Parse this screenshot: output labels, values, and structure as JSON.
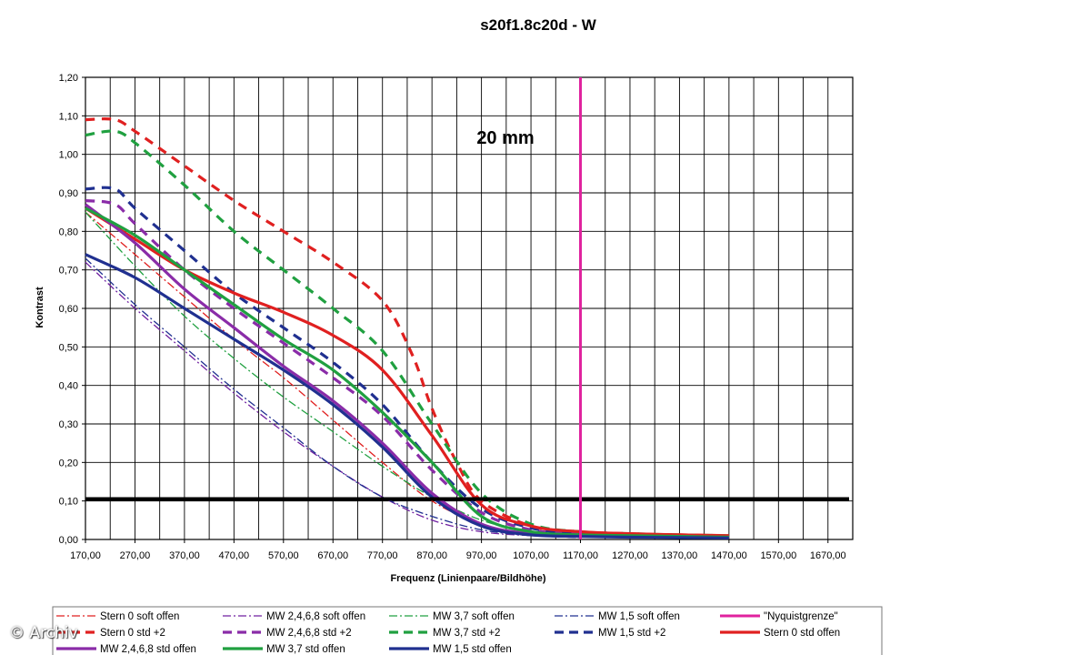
{
  "chart_data": {
    "type": "line",
    "title": "s20f1.8c20d - W",
    "annotation": "20 mm",
    "xlabel": "Frequenz (Linienpaare/Bildhöhe)",
    "ylabel": "Kontrast",
    "xlim": [
      170,
      1720
    ],
    "ylim": [
      0,
      1.2
    ],
    "x_ticks": [
      "170,00",
      "270,00",
      "370,00",
      "470,00",
      "570,00",
      "670,00",
      "770,00",
      "870,00",
      "970,00",
      "1070,00",
      "1170,00",
      "1270,00",
      "1370,00",
      "1470,00",
      "1570,00",
      "1670,00"
    ],
    "y_ticks": [
      "0,00",
      "0,10",
      "0,20",
      "0,30",
      "0,40",
      "0,50",
      "0,60",
      "0,70",
      "0,80",
      "0,90",
      "1,00",
      "1,10",
      "1,20"
    ],
    "grid": true,
    "reference_line": {
      "y": 0.105
    },
    "nyquist": {
      "name": "\"Nyquistgrenze\"",
      "x": 1170,
      "color": "#e0229e"
    },
    "series": [
      {
        "name": "Stern 0 soft offen",
        "color": "#e02020",
        "style": "dashdot",
        "width": 1.3,
        "points": [
          [
            170,
            0.85
          ],
          [
            270,
            0.74
          ],
          [
            370,
            0.63
          ],
          [
            470,
            0.52
          ],
          [
            570,
            0.42
          ],
          [
            670,
            0.31
          ],
          [
            770,
            0.2
          ],
          [
            870,
            0.1
          ],
          [
            970,
            0.04
          ],
          [
            1070,
            0.015
          ],
          [
            1170,
            0.01
          ]
        ]
      },
      {
        "name": "MW 2,4,6,8 soft offen",
        "color": "#7020a0",
        "style": "dashdot",
        "width": 1.3,
        "points": [
          [
            170,
            0.72
          ],
          [
            270,
            0.6
          ],
          [
            370,
            0.49
          ],
          [
            470,
            0.38
          ],
          [
            570,
            0.28
          ],
          [
            670,
            0.19
          ],
          [
            770,
            0.11
          ],
          [
            870,
            0.05
          ],
          [
            970,
            0.02
          ],
          [
            1070,
            0.01
          ],
          [
            1170,
            0.005
          ]
        ]
      },
      {
        "name": "MW 3,7 soft offen",
        "color": "#20a040",
        "style": "dashdot",
        "width": 1.3,
        "points": [
          [
            170,
            0.85
          ],
          [
            270,
            0.71
          ],
          [
            370,
            0.58
          ],
          [
            470,
            0.47
          ],
          [
            570,
            0.37
          ],
          [
            670,
            0.28
          ],
          [
            770,
            0.19
          ],
          [
            870,
            0.11
          ],
          [
            970,
            0.05
          ],
          [
            1070,
            0.02
          ],
          [
            1170,
            0.01
          ]
        ]
      },
      {
        "name": "MW 1,5 soft offen",
        "color": "#203090",
        "style": "dashdot",
        "width": 1.3,
        "points": [
          [
            170,
            0.73
          ],
          [
            270,
            0.61
          ],
          [
            370,
            0.5
          ],
          [
            470,
            0.39
          ],
          [
            570,
            0.29
          ],
          [
            670,
            0.19
          ],
          [
            770,
            0.11
          ],
          [
            870,
            0.06
          ],
          [
            970,
            0.025
          ],
          [
            1070,
            0.01
          ],
          [
            1170,
            0.005
          ]
        ]
      },
      {
        "name": "Stern 0 std +2",
        "color": "#e02020",
        "style": "dash",
        "width": 3.2,
        "points": [
          [
            170,
            1.09
          ],
          [
            230,
            1.09
          ],
          [
            270,
            1.06
          ],
          [
            370,
            0.97
          ],
          [
            470,
            0.88
          ],
          [
            570,
            0.8
          ],
          [
            670,
            0.72
          ],
          [
            770,
            0.62
          ],
          [
            830,
            0.48
          ],
          [
            870,
            0.34
          ],
          [
            920,
            0.2
          ],
          [
            970,
            0.1
          ],
          [
            1070,
            0.035
          ],
          [
            1170,
            0.02
          ],
          [
            1270,
            0.015
          ],
          [
            1370,
            0.012
          ],
          [
            1470,
            0.01
          ]
        ]
      },
      {
        "name": "MW 2,4,6,8 std +2",
        "color": "#8a2ca8",
        "style": "dash",
        "width": 3.2,
        "points": [
          [
            170,
            0.88
          ],
          [
            230,
            0.87
          ],
          [
            270,
            0.82
          ],
          [
            370,
            0.7
          ],
          [
            470,
            0.6
          ],
          [
            570,
            0.51
          ],
          [
            670,
            0.42
          ],
          [
            770,
            0.32
          ],
          [
            870,
            0.18
          ],
          [
            970,
            0.07
          ],
          [
            1070,
            0.025
          ],
          [
            1170,
            0.015
          ],
          [
            1270,
            0.012
          ],
          [
            1370,
            0.01
          ],
          [
            1470,
            0.008
          ]
        ]
      },
      {
        "name": "MW 3,7 std +2",
        "color": "#20a040",
        "style": "dash",
        "width": 3.2,
        "points": [
          [
            170,
            1.05
          ],
          [
            230,
            1.06
          ],
          [
            270,
            1.03
          ],
          [
            370,
            0.92
          ],
          [
            470,
            0.8
          ],
          [
            570,
            0.7
          ],
          [
            670,
            0.6
          ],
          [
            770,
            0.49
          ],
          [
            870,
            0.3
          ],
          [
            970,
            0.12
          ],
          [
            1070,
            0.04
          ],
          [
            1170,
            0.02
          ],
          [
            1270,
            0.015
          ],
          [
            1370,
            0.012
          ],
          [
            1470,
            0.01
          ]
        ]
      },
      {
        "name": "MW 1,5 std +2",
        "color": "#203090",
        "style": "dash",
        "width": 3.2,
        "points": [
          [
            170,
            0.91
          ],
          [
            230,
            0.91
          ],
          [
            270,
            0.86
          ],
          [
            370,
            0.75
          ],
          [
            470,
            0.64
          ],
          [
            570,
            0.55
          ],
          [
            670,
            0.46
          ],
          [
            770,
            0.35
          ],
          [
            870,
            0.2
          ],
          [
            970,
            0.08
          ],
          [
            1070,
            0.03
          ],
          [
            1170,
            0.015
          ],
          [
            1270,
            0.012
          ],
          [
            1370,
            0.01
          ],
          [
            1470,
            0.008
          ]
        ]
      },
      {
        "name": "Stern 0 std offen",
        "color": "#e02020",
        "style": "solid",
        "width": 3.2,
        "points": [
          [
            170,
            0.86
          ],
          [
            270,
            0.78
          ],
          [
            370,
            0.7
          ],
          [
            470,
            0.64
          ],
          [
            570,
            0.59
          ],
          [
            670,
            0.53
          ],
          [
            770,
            0.44
          ],
          [
            870,
            0.27
          ],
          [
            970,
            0.09
          ],
          [
            1070,
            0.035
          ],
          [
            1170,
            0.02
          ],
          [
            1270,
            0.015
          ],
          [
            1370,
            0.012
          ],
          [
            1470,
            0.01
          ]
        ]
      },
      {
        "name": "MW 2,4,6,8 std offen",
        "color": "#8a2ca8",
        "style": "solid",
        "width": 3.2,
        "points": [
          [
            170,
            0.87
          ],
          [
            270,
            0.77
          ],
          [
            370,
            0.65
          ],
          [
            470,
            0.55
          ],
          [
            570,
            0.45
          ],
          [
            670,
            0.36
          ],
          [
            770,
            0.25
          ],
          [
            870,
            0.12
          ],
          [
            970,
            0.04
          ],
          [
            1070,
            0.015
          ],
          [
            1170,
            0.01
          ],
          [
            1270,
            0.008
          ],
          [
            1370,
            0.006
          ],
          [
            1470,
            0.005
          ]
        ]
      },
      {
        "name": "MW 3,7 std offen",
        "color": "#20a040",
        "style": "solid",
        "width": 3.2,
        "points": [
          [
            170,
            0.86
          ],
          [
            270,
            0.79
          ],
          [
            370,
            0.7
          ],
          [
            470,
            0.61
          ],
          [
            570,
            0.52
          ],
          [
            670,
            0.44
          ],
          [
            770,
            0.33
          ],
          [
            870,
            0.2
          ],
          [
            970,
            0.06
          ],
          [
            1070,
            0.02
          ],
          [
            1170,
            0.012
          ],
          [
            1270,
            0.01
          ],
          [
            1370,
            0.008
          ],
          [
            1470,
            0.006
          ]
        ]
      },
      {
        "name": "MW 1,5 std offen",
        "color": "#203090",
        "style": "solid",
        "width": 3.2,
        "points": [
          [
            170,
            0.74
          ],
          [
            270,
            0.68
          ],
          [
            370,
            0.6
          ],
          [
            470,
            0.52
          ],
          [
            570,
            0.44
          ],
          [
            670,
            0.35
          ],
          [
            770,
            0.24
          ],
          [
            870,
            0.11
          ],
          [
            970,
            0.035
          ],
          [
            1070,
            0.012
          ],
          [
            1170,
            0.008
          ],
          [
            1270,
            0.006
          ],
          [
            1370,
            0.005
          ],
          [
            1470,
            0.004
          ]
        ]
      }
    ],
    "legend": {
      "placement": "bottom",
      "rows": [
        [
          "Stern 0 soft offen",
          "MW 2,4,6,8 soft offen",
          "MW 3,7 soft offen",
          "MW 1,5 soft offen",
          "\"Nyquistgrenze\""
        ],
        [
          "Stern 0 std +2",
          "MW 2,4,6,8 std +2",
          "MW 3,7 std +2",
          "MW 1,5 std +2",
          "Stern 0 std offen"
        ],
        [
          "MW 2,4,6,8 std offen",
          "MW 3,7 std offen",
          "MW 1,5 std offen"
        ]
      ]
    }
  },
  "watermark": "© Archiv"
}
